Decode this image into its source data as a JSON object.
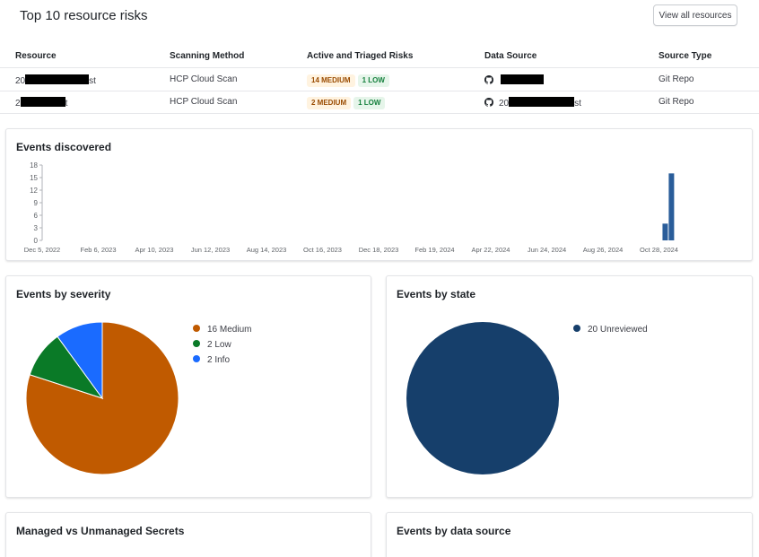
{
  "top_risks": {
    "title": "Top 10 resource risks",
    "view_all_label": "View all resources",
    "columns": [
      "Resource",
      "Scanning Method",
      "Active and Triaged Risks",
      "Data Source",
      "Source Type"
    ],
    "rows": [
      {
        "resource_prefix": "20",
        "resource_suffix": "st",
        "scanning_method": "HCP Cloud Scan",
        "badges": [
          {
            "label": "14 MEDIUM",
            "kind": "medium"
          },
          {
            "label": "1 LOW",
            "kind": "low"
          }
        ],
        "data_source_prefix": "",
        "data_source_suffix": "",
        "source_type": "Git Repo"
      },
      {
        "resource_prefix": "2",
        "resource_suffix": "t",
        "scanning_method": "HCP Cloud Scan",
        "badges": [
          {
            "label": "2 MEDIUM",
            "kind": "medium"
          },
          {
            "label": "1 LOW",
            "kind": "low"
          }
        ],
        "data_source_prefix": "20",
        "data_source_suffix": "st",
        "source_type": "Git Repo"
      }
    ]
  },
  "events_discovered": {
    "title": "Events discovered"
  },
  "events_by_severity": {
    "title": "Events by severity"
  },
  "events_by_state": {
    "title": "Events by state"
  },
  "managed_vs_unmanaged": {
    "title": "Managed vs Unmanaged Secrets"
  },
  "events_by_data_source": {
    "title": "Events by data source"
  },
  "colors": {
    "link": "#1060ff",
    "bar": "#2a5d9a",
    "medium": "#c05a00",
    "low": "#0a7a27",
    "info": "#1a6bff",
    "unreviewed": "#163f6b"
  },
  "icons": {
    "data_source": "github-icon"
  },
  "chart_data": [
    {
      "type": "bar",
      "title": "Events discovered",
      "x_ticks": [
        "Dec 5, 2022",
        "Feb 6, 2023",
        "Apr 10, 2023",
        "Jun 12, 2023",
        "Aug 14, 2023",
        "Oct 16, 2023",
        "Dec 18, 2023",
        "Feb 19, 2024",
        "Apr 22, 2024",
        "Jun 24, 2024",
        "Aug 26, 2024",
        "Oct 28, 2024"
      ],
      "x_range": [
        "2022-12-05",
        "2024-12-30"
      ],
      "y_ticks": [
        0,
        3,
        6,
        9,
        12,
        15,
        18
      ],
      "ylim": [
        0,
        18
      ],
      "series": [
        {
          "x": [
            "2024-11-04",
            "2024-11-11"
          ],
          "values": [
            4,
            16
          ]
        }
      ]
    },
    {
      "type": "pie",
      "title": "Events by severity",
      "slices": [
        {
          "label": "16 Medium",
          "value": 16,
          "color": "#c05a00"
        },
        {
          "label": "2 Low",
          "value": 2,
          "color": "#0a7a27"
        },
        {
          "label": "2 Info",
          "value": 2,
          "color": "#1a6bff"
        }
      ]
    },
    {
      "type": "pie",
      "title": "Events by state",
      "slices": [
        {
          "label": "20 Unreviewed",
          "value": 20,
          "color": "#163f6b"
        }
      ]
    }
  ]
}
